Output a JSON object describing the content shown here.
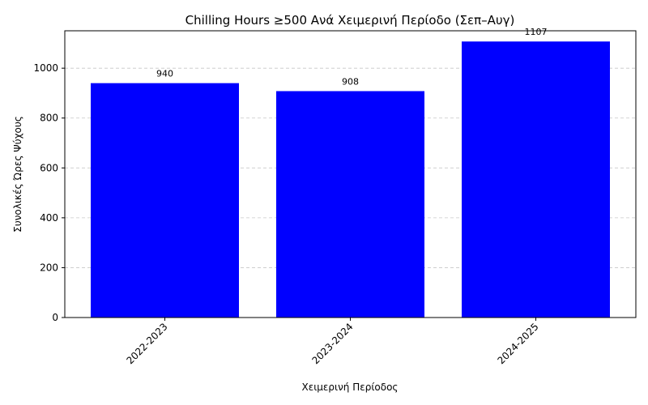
{
  "chart_data": {
    "type": "bar",
    "title": "Chilling Hours ≥500 Ανά Χειμερινή Περίοδο (Σεπ–Αυγ)",
    "xlabel": "Χειμερινή Περίοδος",
    "ylabel": "Συνολικές Ώρες Ψύχους",
    "categories": [
      "2022-2023",
      "2023-2024",
      "2024-2025"
    ],
    "values": [
      940,
      908,
      1107
    ],
    "data_labels": [
      "940",
      "908",
      "1107"
    ],
    "ylim": [
      0,
      1150
    ],
    "yticks": [
      0,
      200,
      400,
      600,
      800,
      1000
    ],
    "ytick_labels": [
      "0",
      "200",
      "400",
      "600",
      "800",
      "1000"
    ],
    "bar_color": "#0000ff",
    "grid": {
      "axis": "y",
      "style": "dashed",
      "color": "#c8c8c8"
    },
    "legend": "none"
  }
}
